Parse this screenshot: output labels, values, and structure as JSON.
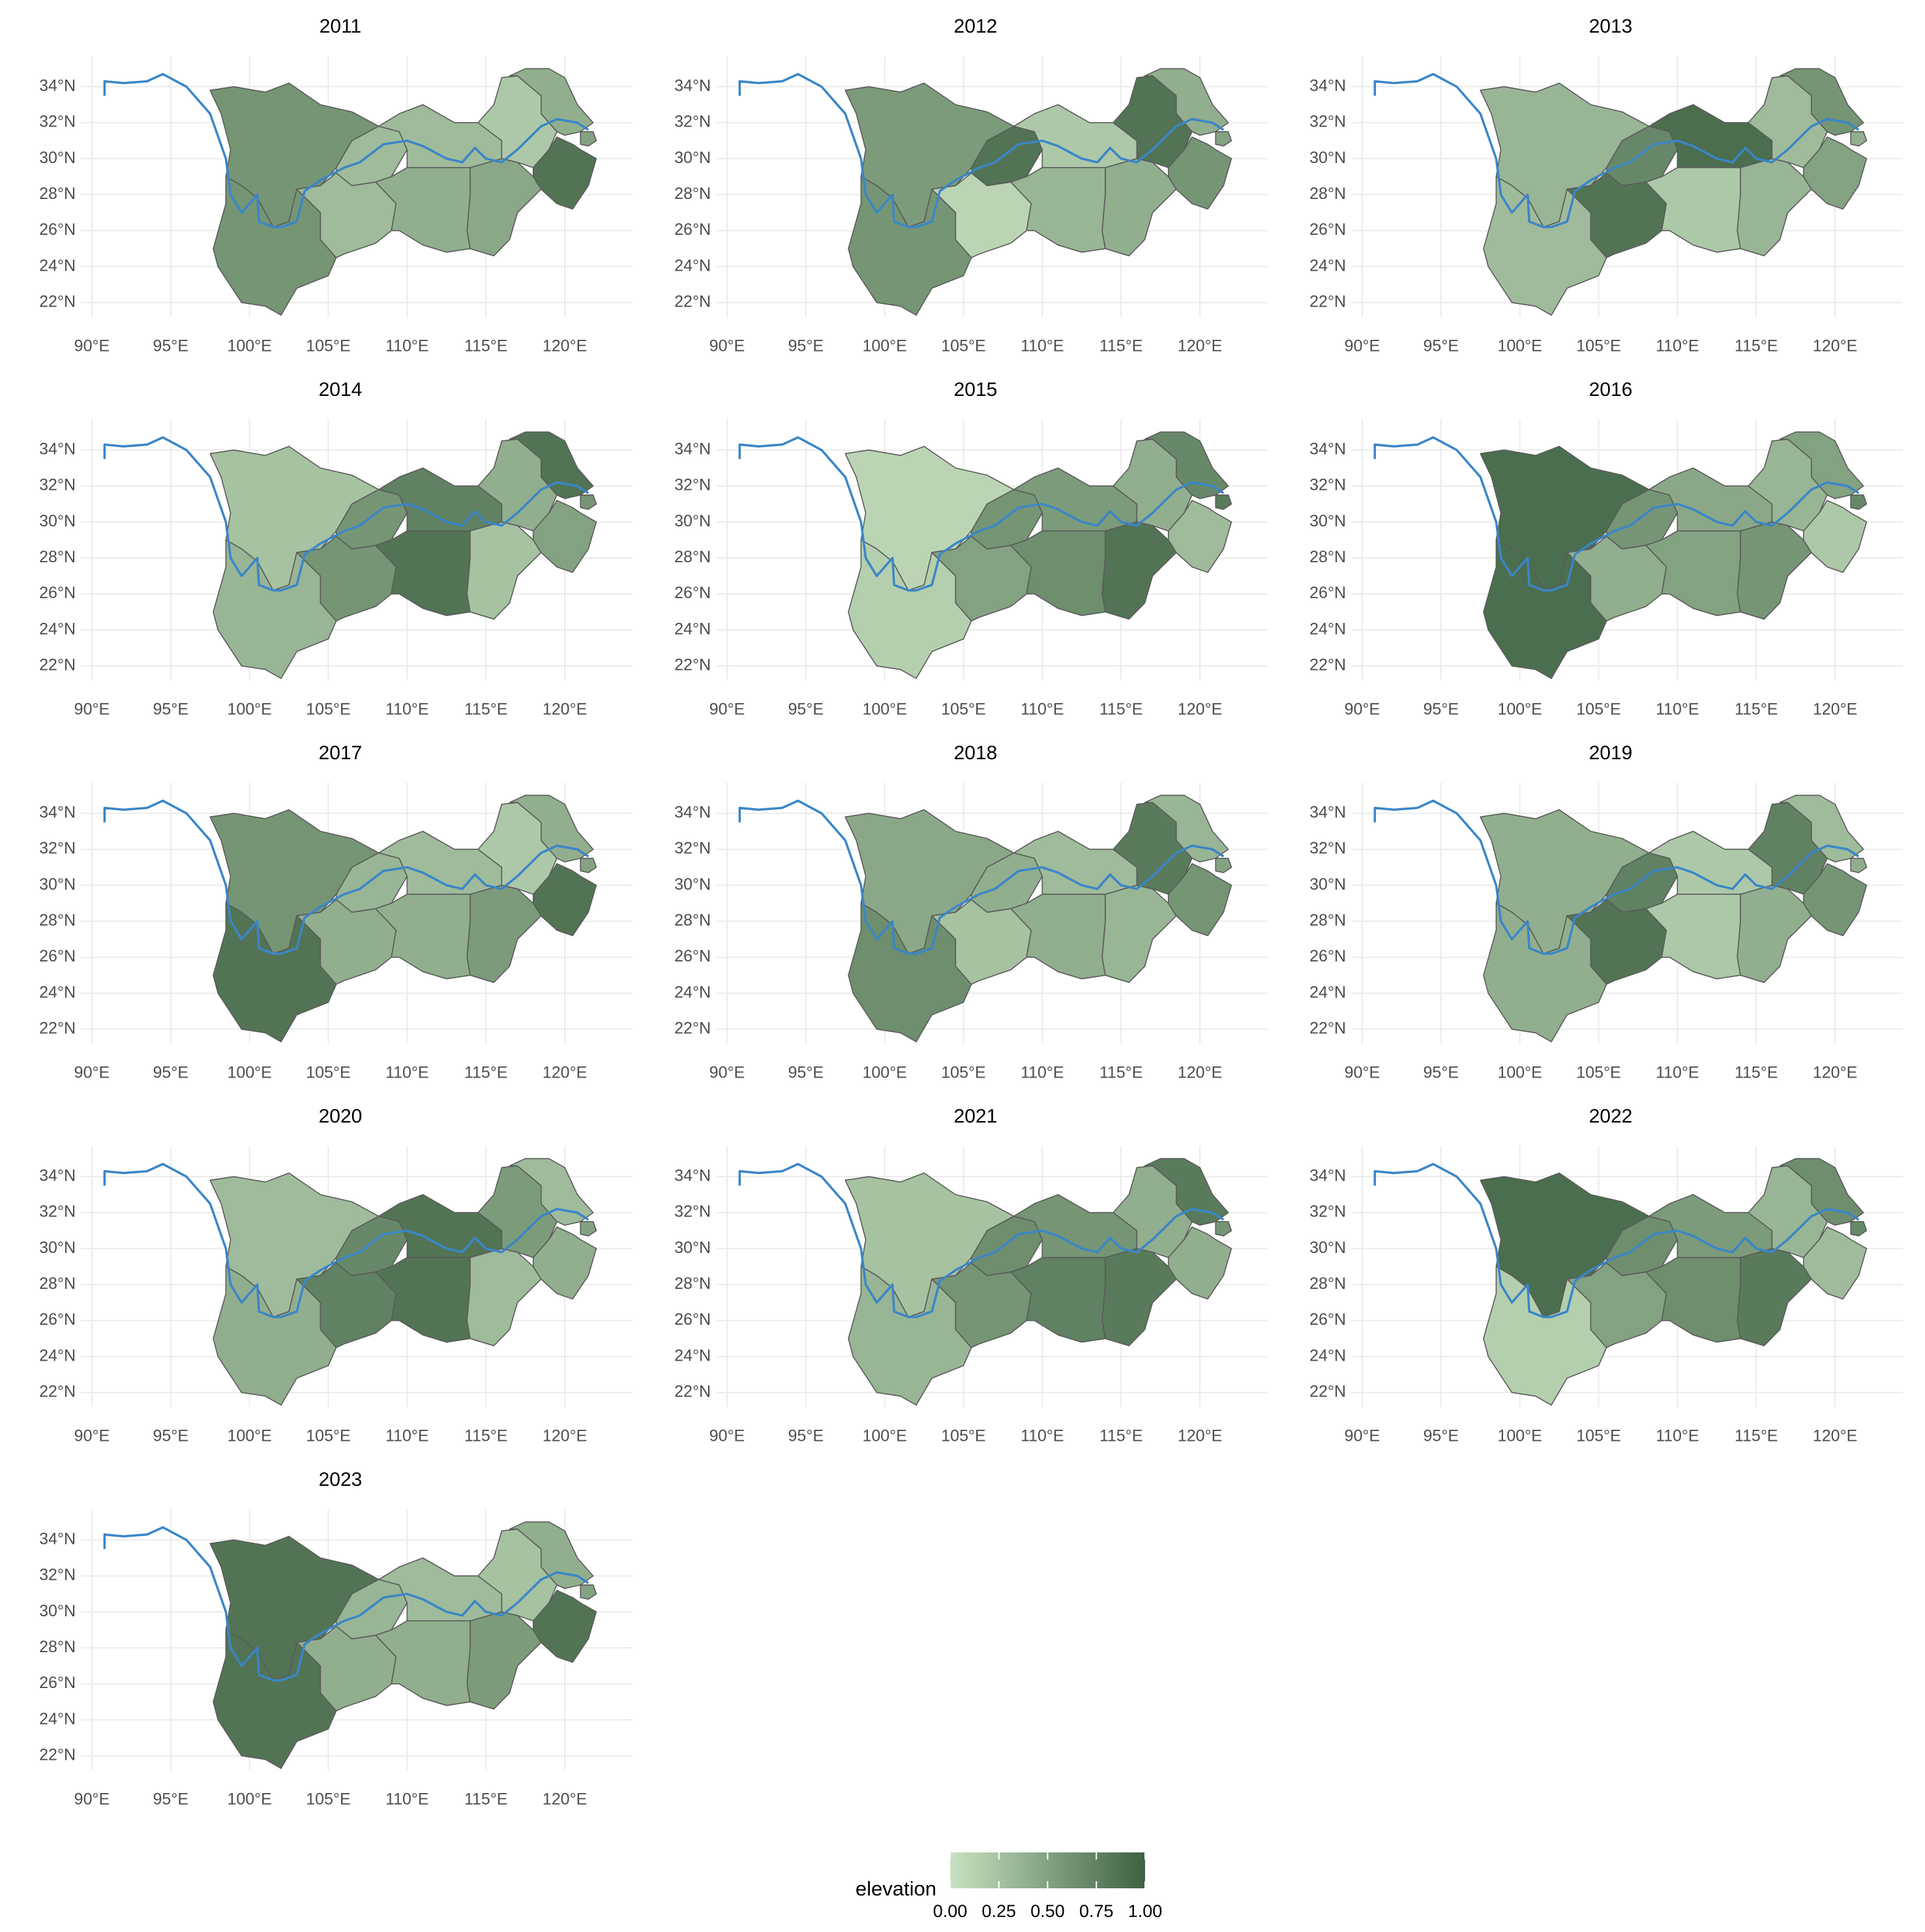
{
  "chart_data": [
    {
      "type": "map",
      "title": "2011",
      "values": [
        0.6,
        0.6,
        0.3,
        0.3,
        0.3,
        0.4,
        0.45,
        0.2,
        0.4,
        0.85,
        0.5
      ],
      "xlim": [
        89.3,
        124.3
      ],
      "ylim": [
        21.2,
        35.7
      ],
      "xticks": [
        {
          "value": 90,
          "label": "90°E"
        },
        {
          "value": 95,
          "label": "95°E"
        },
        {
          "value": 100,
          "label": "100°E"
        },
        {
          "value": 105,
          "label": "105°E"
        },
        {
          "value": 110,
          "label": "110°E"
        },
        {
          "value": 115,
          "label": "115°E"
        },
        {
          "value": 120,
          "label": "120°E"
        }
      ],
      "yticks": [
        {
          "value": 22,
          "label": "22°N"
        },
        {
          "value": 24,
          "label": "24°N"
        },
        {
          "value": 26,
          "label": "26°N"
        },
        {
          "value": 28,
          "label": "28°N"
        },
        {
          "value": 30,
          "label": "30°N"
        },
        {
          "value": 32,
          "label": "32°N"
        },
        {
          "value": 34,
          "label": "34°N"
        }
      ]
    },
    {
      "type": "map",
      "title": "2012",
      "values": [
        0.55,
        0.6,
        0.1,
        0.85,
        0.2,
        0.35,
        0.4,
        0.85,
        0.4,
        0.6,
        0.5
      ],
      "xlim": [
        89.3,
        124.3
      ],
      "ylim": [
        21.2,
        35.7
      ],
      "xticks": [
        {
          "value": 90,
          "label": "90°E"
        },
        {
          "value": 95,
          "label": "95°E"
        },
        {
          "value": 100,
          "label": "100°E"
        },
        {
          "value": 105,
          "label": "105°E"
        },
        {
          "value": 110,
          "label": "110°E"
        },
        {
          "value": 115,
          "label": "115°E"
        },
        {
          "value": 120,
          "label": "120°E"
        }
      ],
      "yticks": [
        {
          "value": 22,
          "label": "22°N"
        },
        {
          "value": 24,
          "label": "24°N"
        },
        {
          "value": 26,
          "label": "26°N"
        },
        {
          "value": 28,
          "label": "28°N"
        },
        {
          "value": 30,
          "label": "30°N"
        },
        {
          "value": 32,
          "label": "32°N"
        },
        {
          "value": 34,
          "label": "34°N"
        }
      ]
    },
    {
      "type": "map",
      "title": "2013",
      "values": [
        0.35,
        0.3,
        0.85,
        0.7,
        0.9,
        0.2,
        0.35,
        0.3,
        0.6,
        0.5,
        0.4
      ],
      "xlim": [
        89.3,
        124.3
      ],
      "ylim": [
        21.2,
        35.7
      ],
      "xticks": [
        {
          "value": 90,
          "label": "90°E"
        },
        {
          "value": 95,
          "label": "95°E"
        },
        {
          "value": 100,
          "label": "100°E"
        },
        {
          "value": 105,
          "label": "105°E"
        },
        {
          "value": 110,
          "label": "110°E"
        },
        {
          "value": 115,
          "label": "115°E"
        },
        {
          "value": 120,
          "label": "120°E"
        }
      ],
      "yticks": [
        {
          "value": 22,
          "label": "22°N"
        },
        {
          "value": 24,
          "label": "24°N"
        },
        {
          "value": 26,
          "label": "26°N"
        },
        {
          "value": 28,
          "label": "28°N"
        },
        {
          "value": 30,
          "label": "30°N"
        },
        {
          "value": 32,
          "label": "32°N"
        },
        {
          "value": 34,
          "label": "34°N"
        }
      ]
    },
    {
      "type": "map",
      "title": "2014",
      "values": [
        0.25,
        0.35,
        0.6,
        0.6,
        0.75,
        0.85,
        0.25,
        0.4,
        0.85,
        0.5,
        0.6
      ],
      "xlim": [
        89.3,
        124.3
      ],
      "ylim": [
        21.2,
        35.7
      ],
      "xticks": [
        {
          "value": 90,
          "label": "90°E"
        },
        {
          "value": 95,
          "label": "95°E"
        },
        {
          "value": 100,
          "label": "100°E"
        },
        {
          "value": 105,
          "label": "105°E"
        },
        {
          "value": 110,
          "label": "110°E"
        },
        {
          "value": 115,
          "label": "115°E"
        },
        {
          "value": 120,
          "label": "120°E"
        }
      ],
      "yticks": [
        {
          "value": 22,
          "label": "22°N"
        },
        {
          "value": 24,
          "label": "24°N"
        },
        {
          "value": 26,
          "label": "26°N"
        },
        {
          "value": 28,
          "label": "28°N"
        },
        {
          "value": 30,
          "label": "30°N"
        },
        {
          "value": 32,
          "label": "32°N"
        },
        {
          "value": 34,
          "label": "34°N"
        }
      ]
    },
    {
      "type": "map",
      "title": "2015",
      "values": [
        0.1,
        0.15,
        0.5,
        0.6,
        0.55,
        0.65,
        0.85,
        0.4,
        0.7,
        0.3,
        0.8
      ],
      "xlim": [
        89.3,
        124.3
      ],
      "ylim": [
        21.2,
        35.7
      ],
      "xticks": [
        {
          "value": 90,
          "label": "90°E"
        },
        {
          "value": 95,
          "label": "95°E"
        },
        {
          "value": 100,
          "label": "100°E"
        },
        {
          "value": 105,
          "label": "105°E"
        },
        {
          "value": 110,
          "label": "110°E"
        },
        {
          "value": 115,
          "label": "115°E"
        },
        {
          "value": 120,
          "label": "120°E"
        }
      ],
      "yticks": [
        {
          "value": 22,
          "label": "22°N"
        },
        {
          "value": 24,
          "label": "24°N"
        },
        {
          "value": 26,
          "label": "26°N"
        },
        {
          "value": 28,
          "label": "28°N"
        },
        {
          "value": 30,
          "label": "30°N"
        },
        {
          "value": 32,
          "label": "32°N"
        },
        {
          "value": 34,
          "label": "34°N"
        }
      ]
    },
    {
      "type": "map",
      "title": "2016",
      "values": [
        0.9,
        0.9,
        0.4,
        0.6,
        0.45,
        0.5,
        0.6,
        0.35,
        0.5,
        0.2,
        0.7
      ],
      "xlim": [
        89.3,
        124.3
      ],
      "ylim": [
        21.2,
        35.7
      ],
      "xticks": [
        {
          "value": 90,
          "label": "90°E"
        },
        {
          "value": 95,
          "label": "95°E"
        },
        {
          "value": 100,
          "label": "100°E"
        },
        {
          "value": 105,
          "label": "105°E"
        },
        {
          "value": 110,
          "label": "110°E"
        },
        {
          "value": 115,
          "label": "115°E"
        },
        {
          "value": 120,
          "label": "120°E"
        }
      ],
      "yticks": [
        {
          "value": 22,
          "label": "22°N"
        },
        {
          "value": 24,
          "label": "24°N"
        },
        {
          "value": 26,
          "label": "26°N"
        },
        {
          "value": 28,
          "label": "28°N"
        },
        {
          "value": 30,
          "label": "30°N"
        },
        {
          "value": 32,
          "label": "32°N"
        },
        {
          "value": 34,
          "label": "34°N"
        }
      ]
    },
    {
      "type": "map",
      "title": "2017",
      "values": [
        0.6,
        0.85,
        0.4,
        0.35,
        0.3,
        0.4,
        0.55,
        0.2,
        0.4,
        0.85,
        0.5
      ],
      "xlim": [
        89.3,
        124.3
      ],
      "ylim": [
        21.2,
        35.7
      ],
      "xticks": [
        {
          "value": 90,
          "label": "90°E"
        },
        {
          "value": 95,
          "label": "95°E"
        },
        {
          "value": 100,
          "label": "100°E"
        },
        {
          "value": 105,
          "label": "105°E"
        },
        {
          "value": 110,
          "label": "110°E"
        },
        {
          "value": 115,
          "label": "115°E"
        },
        {
          "value": 120,
          "label": "120°E"
        }
      ],
      "yticks": [
        {
          "value": 22,
          "label": "22°N"
        },
        {
          "value": 24,
          "label": "24°N"
        },
        {
          "value": 26,
          "label": "26°N"
        },
        {
          "value": 28,
          "label": "28°N"
        },
        {
          "value": 30,
          "label": "30°N"
        },
        {
          "value": 32,
          "label": "32°N"
        },
        {
          "value": 34,
          "label": "34°N"
        }
      ]
    },
    {
      "type": "map",
      "title": "2018",
      "values": [
        0.45,
        0.65,
        0.25,
        0.4,
        0.3,
        0.4,
        0.35,
        0.8,
        0.35,
        0.6,
        0.5
      ],
      "xlim": [
        89.3,
        124.3
      ],
      "ylim": [
        21.2,
        35.7
      ],
      "xticks": [
        {
          "value": 90,
          "label": "90°E"
        },
        {
          "value": 95,
          "label": "95°E"
        },
        {
          "value": 100,
          "label": "100°E"
        },
        {
          "value": 105,
          "label": "105°E"
        },
        {
          "value": 110,
          "label": "110°E"
        },
        {
          "value": 115,
          "label": "115°E"
        },
        {
          "value": 120,
          "label": "120°E"
        }
      ],
      "yticks": [
        {
          "value": 22,
          "label": "22°N"
        },
        {
          "value": 24,
          "label": "24°N"
        },
        {
          "value": 26,
          "label": "26°N"
        },
        {
          "value": 28,
          "label": "28°N"
        },
        {
          "value": 30,
          "label": "30°N"
        },
        {
          "value": 32,
          "label": "32°N"
        },
        {
          "value": 34,
          "label": "34°N"
        }
      ]
    },
    {
      "type": "map",
      "title": "2019",
      "values": [
        0.4,
        0.4,
        0.85,
        0.75,
        0.2,
        0.2,
        0.4,
        0.75,
        0.3,
        0.6,
        0.4
      ],
      "xlim": [
        89.3,
        124.3
      ],
      "ylim": [
        21.2,
        35.7
      ],
      "xticks": [
        {
          "value": 90,
          "label": "90°E"
        },
        {
          "value": 95,
          "label": "95°E"
        },
        {
          "value": 100,
          "label": "100°E"
        },
        {
          "value": 105,
          "label": "105°E"
        },
        {
          "value": 110,
          "label": "110°E"
        },
        {
          "value": 115,
          "label": "115°E"
        },
        {
          "value": 120,
          "label": "120°E"
        }
      ],
      "yticks": [
        {
          "value": 22,
          "label": "22°N"
        },
        {
          "value": 24,
          "label": "24°N"
        },
        {
          "value": 26,
          "label": "26°N"
        },
        {
          "value": 28,
          "label": "28°N"
        },
        {
          "value": 30,
          "label": "30°N"
        },
        {
          "value": 32,
          "label": "32°N"
        },
        {
          "value": 34,
          "label": "34°N"
        }
      ]
    },
    {
      "type": "map",
      "title": "2020",
      "values": [
        0.3,
        0.4,
        0.75,
        0.7,
        0.85,
        0.85,
        0.3,
        0.55,
        0.3,
        0.4,
        0.5
      ],
      "xlim": [
        89.3,
        124.3
      ],
      "ylim": [
        21.2,
        35.7
      ],
      "xticks": [
        {
          "value": 90,
          "label": "90°E"
        },
        {
          "value": 95,
          "label": "95°E"
        },
        {
          "value": 100,
          "label": "100°E"
        },
        {
          "value": 105,
          "label": "105°E"
        },
        {
          "value": 110,
          "label": "110°E"
        },
        {
          "value": 115,
          "label": "115°E"
        },
        {
          "value": 120,
          "label": "120°E"
        }
      ],
      "yticks": [
        {
          "value": 22,
          "label": "22°N"
        },
        {
          "value": 24,
          "label": "24°N"
        },
        {
          "value": 26,
          "label": "26°N"
        },
        {
          "value": 28,
          "label": "28°N"
        },
        {
          "value": 30,
          "label": "30°N"
        },
        {
          "value": 32,
          "label": "32°N"
        },
        {
          "value": 34,
          "label": "34°N"
        }
      ]
    },
    {
      "type": "map",
      "title": "2021",
      "values": [
        0.25,
        0.35,
        0.6,
        0.65,
        0.6,
        0.75,
        0.8,
        0.4,
        0.8,
        0.4,
        0.6
      ],
      "xlim": [
        89.3,
        124.3
      ],
      "ylim": [
        21.2,
        35.7
      ],
      "xticks": [
        {
          "value": 90,
          "label": "90°E"
        },
        {
          "value": 95,
          "label": "95°E"
        },
        {
          "value": 100,
          "label": "100°E"
        },
        {
          "value": 105,
          "label": "105°E"
        },
        {
          "value": 110,
          "label": "110°E"
        },
        {
          "value": 115,
          "label": "115°E"
        },
        {
          "value": 120,
          "label": "120°E"
        }
      ],
      "yticks": [
        {
          "value": 22,
          "label": "22°N"
        },
        {
          "value": 24,
          "label": "24°N"
        },
        {
          "value": 26,
          "label": "26°N"
        },
        {
          "value": 28,
          "label": "28°N"
        },
        {
          "value": 30,
          "label": "30°N"
        },
        {
          "value": 32,
          "label": "32°N"
        },
        {
          "value": 34,
          "label": "34°N"
        }
      ]
    },
    {
      "type": "map",
      "title": "2022",
      "values": [
        0.9,
        0.15,
        0.5,
        0.65,
        0.55,
        0.65,
        0.8,
        0.35,
        0.65,
        0.3,
        0.7
      ],
      "xlim": [
        89.3,
        124.3
      ],
      "ylim": [
        21.2,
        35.7
      ],
      "xticks": [
        {
          "value": 90,
          "label": "90°E"
        },
        {
          "value": 95,
          "label": "95°E"
        },
        {
          "value": 100,
          "label": "100°E"
        },
        {
          "value": 105,
          "label": "105°E"
        },
        {
          "value": 110,
          "label": "110°E"
        },
        {
          "value": 115,
          "label": "115°E"
        },
        {
          "value": 120,
          "label": "120°E"
        }
      ],
      "yticks": [
        {
          "value": 22,
          "label": "22°N"
        },
        {
          "value": 24,
          "label": "24°N"
        },
        {
          "value": 26,
          "label": "26°N"
        },
        {
          "value": 28,
          "label": "28°N"
        },
        {
          "value": 30,
          "label": "30°N"
        },
        {
          "value": 32,
          "label": "32°N"
        },
        {
          "value": 34,
          "label": "34°N"
        }
      ]
    },
    {
      "type": "map",
      "title": "2023",
      "values": [
        0.85,
        0.85,
        0.4,
        0.35,
        0.3,
        0.4,
        0.55,
        0.25,
        0.4,
        0.85,
        0.5
      ],
      "xlim": [
        89.3,
        124.3
      ],
      "ylim": [
        21.2,
        35.7
      ],
      "xticks": [
        {
          "value": 90,
          "label": "90°E"
        },
        {
          "value": 95,
          "label": "95°E"
        },
        {
          "value": 100,
          "label": "100°E"
        },
        {
          "value": 105,
          "label": "105°E"
        },
        {
          "value": 110,
          "label": "110°E"
        },
        {
          "value": 115,
          "label": "115°E"
        },
        {
          "value": 120,
          "label": "120°E"
        }
      ],
      "yticks": [
        {
          "value": 22,
          "label": "22°N"
        },
        {
          "value": 24,
          "label": "24°N"
        },
        {
          "value": 26,
          "label": "26°N"
        },
        {
          "value": 28,
          "label": "28°N"
        },
        {
          "value": 30,
          "label": "30°N"
        },
        {
          "value": 32,
          "label": "32°N"
        },
        {
          "value": 34,
          "label": "34°N"
        }
      ]
    }
  ],
  "colorbar": {
    "title": "elevation",
    "lim": [
      0,
      1
    ],
    "colors": [
      "#c9e2c1",
      "#3d6142"
    ],
    "ticks": [
      {
        "value": 0,
        "label": "0.00"
      },
      {
        "value": 0.25,
        "label": "0.25"
      },
      {
        "value": 0.5,
        "label": "0.50"
      },
      {
        "value": 0.75,
        "label": "0.75"
      },
      {
        "value": 1,
        "label": "1.00"
      }
    ]
  }
}
